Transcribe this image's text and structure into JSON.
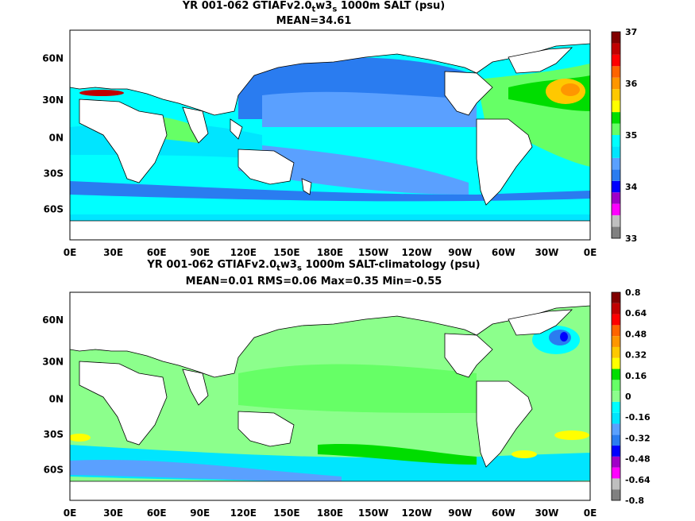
{
  "panels": [
    {
      "title_main": "YR 001-062 GTIAFv2.0",
      "title_sub": "t",
      "title_mid": "w3",
      "title_sub2": "s",
      "title_end": " 1000m SALT (psu)",
      "stats": "MEAN=34.61",
      "lat_labels": [
        "60N",
        "30N",
        "0N",
        "30S",
        "60S"
      ],
      "lon_labels": [
        "0E",
        "30E",
        "60E",
        "90E",
        "120E",
        "150E",
        "180E",
        "150W",
        "120W",
        "90W",
        "60W",
        "30W",
        "0E"
      ],
      "colorbar_labels": [
        "37",
        "36",
        "35",
        "34",
        "33"
      ],
      "colorbar_colors": [
        "#808080",
        "#bfbfbf",
        "#ff00ff",
        "#a000c8",
        "#0000ff",
        "#2a7cf0",
        "#5aa0ff",
        "#00e5ff",
        "#00ffff",
        "#66ff66",
        "#00dd00",
        "#ffff00",
        "#ffc800",
        "#ff9600",
        "#ff6400",
        "#ff0000",
        "#c00000",
        "#800000"
      ]
    },
    {
      "title_main": "YR 001-062 GTIAFv2.0",
      "title_sub": "t",
      "title_mid": "w3",
      "title_sub2": "s",
      "title_end": " 1000m SALT-climatology (psu)",
      "stats": "MEAN=0.01   RMS=0.06   Max=0.35   Min=-0.55",
      "lat_labels": [
        "60N",
        "30N",
        "0N",
        "30S",
        "60S"
      ],
      "lon_labels": [
        "0E",
        "30E",
        "60E",
        "90E",
        "120E",
        "150E",
        "180E",
        "150W",
        "120W",
        "90W",
        "60W",
        "30W",
        "0E"
      ],
      "colorbar_labels": [
        "0.8",
        "0.64",
        "0.48",
        "0.32",
        "0.16",
        "0",
        "-0.16",
        "-0.32",
        "-0.48",
        "-0.64",
        "-0.8"
      ],
      "colorbar_colors": [
        "#808080",
        "#bfbfbf",
        "#ff00ff",
        "#a000c8",
        "#0000ff",
        "#2a7cf0",
        "#5aa0ff",
        "#00e5ff",
        "#00ffff",
        "#8cff8c",
        "#66ff66",
        "#00dd00",
        "#ffff00",
        "#ffc800",
        "#ff9600",
        "#ff6400",
        "#ff0000",
        "#c00000",
        "#800000"
      ]
    }
  ]
}
